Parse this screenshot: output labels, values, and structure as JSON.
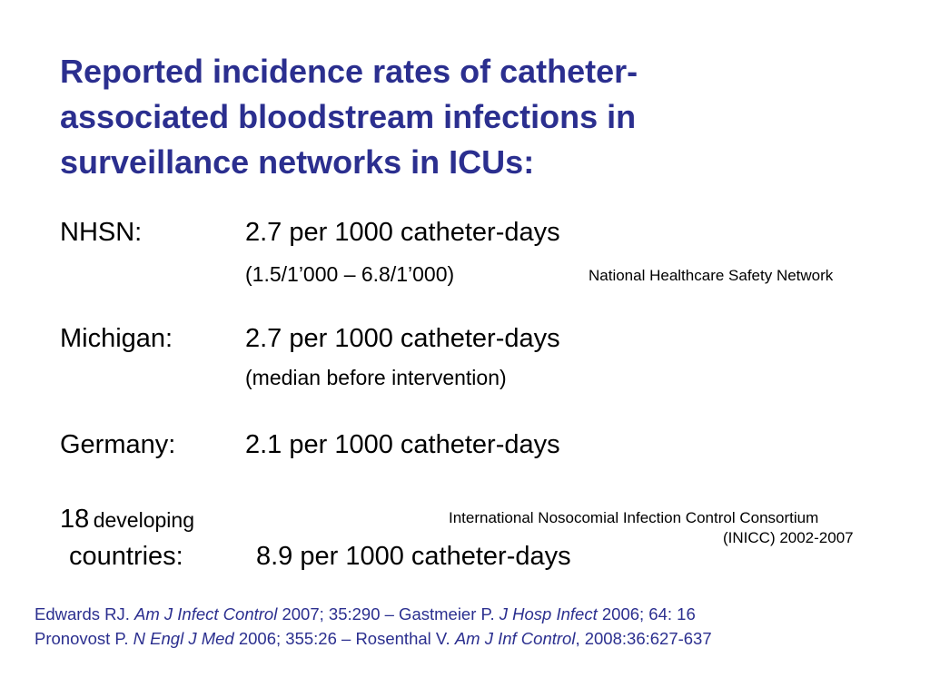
{
  "title": {
    "line1": "Reported incidence rates of catheter-",
    "line2": "associated bloodstream infections in",
    "line3": "surveillance networks in ICUs:"
  },
  "nhsn": {
    "label": "NHSN:",
    "rate": "2.7 per 1000 catheter-days",
    "range": "(1.5/1’000 – 6.8/1’000)",
    "note": "National Healthcare Safety Network"
  },
  "michigan": {
    "label": "Michigan:",
    "rate": "2.7 per 1000 catheter-days",
    "note": "(median before intervention)"
  },
  "germany": {
    "label": "Germany:",
    "rate": "2.1 per 1000 catheter-days"
  },
  "developing": {
    "count": "18",
    "label_small": "developing",
    "label2": "countries:",
    "rate": "8.9 per 1000 catheter-days",
    "source_line1": "International Nosocomial Infection Control Consortium",
    "source_line2": "(INICC) 2002-2007"
  },
  "references": {
    "ref1_author": "Edwards RJ. ",
    "ref1_journal": "Am J Infect Control",
    "ref1_details": " 2007; 35:290 – Gastmeier P. ",
    "ref2_journal": "J Hosp Infect",
    "ref2_details": " 2006; 64: 16",
    "ref3_author": "Pronovost P. ",
    "ref3_journal": "N Engl J Med",
    "ref3_details": " 2006; 355:26 – Rosenthal V. ",
    "ref4_journal": "Am J Inf Control",
    "ref4_details": ", 2008:36:627-637"
  },
  "colors": {
    "title": "#2b2f8f",
    "references": "#2b2f8f",
    "body_text": "#000000",
    "background": "#ffffff"
  }
}
